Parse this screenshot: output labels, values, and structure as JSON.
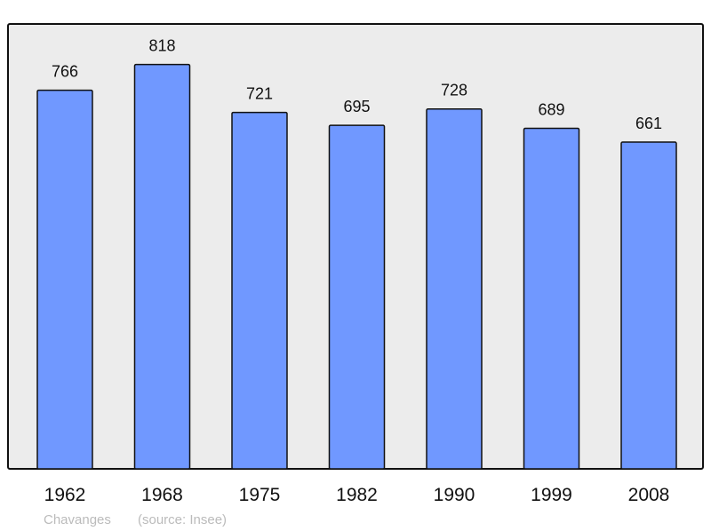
{
  "chart_data": {
    "type": "bar",
    "categories": [
      "1962",
      "1968",
      "1975",
      "1982",
      "1990",
      "1999",
      "2008"
    ],
    "values": [
      766,
      818,
      721,
      695,
      728,
      689,
      661
    ],
    "title": "",
    "xlabel": "",
    "ylabel": "",
    "ylim": [
      0,
      900
    ],
    "grid": false,
    "data_labels": true,
    "colors": {
      "bar": "#7098ff",
      "plot_background": "#ececec",
      "caption": "#bbbbbb"
    }
  },
  "caption": {
    "place": "Chavanges",
    "source": "(source: Insee)"
  }
}
